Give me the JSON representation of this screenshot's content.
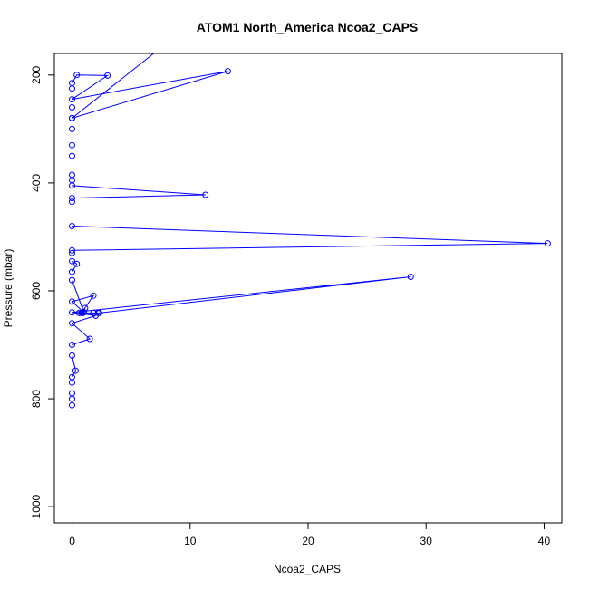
{
  "chart_data": {
    "type": "line",
    "title": "ATOM1 North_America Ncoa2_CAPS",
    "xlabel": "Ncoa2_CAPS",
    "ylabel": "Pressure (mbar)",
    "xlim": [
      -1.5,
      41.5
    ],
    "ylim": [
      1030,
      160
    ],
    "y_reversed": true,
    "x_ticks": [
      0,
      10,
      20,
      30,
      40
    ],
    "y_ticks": [
      200,
      400,
      600,
      800,
      1000
    ],
    "series": [
      {
        "color": "#0000ff",
        "marker": "open-circle",
        "x": [
          7.2,
          0,
          13.2,
          0,
          3.0,
          0.4,
          0,
          0,
          0,
          0,
          0,
          0,
          0,
          0,
          0,
          0,
          11.3,
          0,
          0,
          0,
          40.3,
          0,
          0,
          0,
          0.4,
          0,
          0,
          1.0,
          0,
          1.8,
          0.8,
          0.6,
          1.1,
          0.9,
          1.8,
          2.2,
          2.3,
          28.7,
          0,
          2.0,
          0,
          1.5,
          0,
          0,
          0.3,
          0,
          0,
          0,
          0,
          0
        ],
        "y": [
          155,
          280,
          193,
          245,
          201,
          200,
          215,
          225,
          260,
          280,
          300,
          330,
          350,
          385,
          395,
          405,
          422,
          428,
          435,
          480,
          512,
          525,
          530,
          545,
          550,
          565,
          580,
          640,
          620,
          609,
          641,
          641,
          632,
          641,
          641,
          641,
          641,
          574,
          640,
          646,
          660,
          689,
          700,
          720,
          748,
          760,
          770,
          790,
          800,
          812
        ]
      }
    ]
  }
}
